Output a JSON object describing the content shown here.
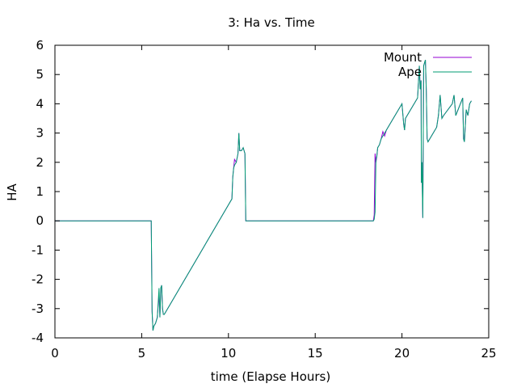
{
  "chart_data": {
    "type": "line",
    "title": "3: Ha vs. Time",
    "xlabel": "time (Elapse Hours)",
    "ylabel": "HA",
    "xlim": [
      0,
      25
    ],
    "ylim": [
      -4,
      6
    ],
    "xticks": [
      0,
      5,
      10,
      15,
      20,
      25
    ],
    "yticks": [
      -4,
      -3,
      -2,
      -1,
      0,
      1,
      2,
      3,
      4,
      5,
      6
    ],
    "grid": false,
    "legend_position": "top-right",
    "series": [
      {
        "name": "Mount",
        "color": "#9400d3",
        "x": [
          0,
          5.55,
          5.6,
          5.65,
          5.7,
          5.8,
          5.9,
          6.0,
          6.05,
          6.1,
          6.15,
          6.2,
          6.25,
          6.3,
          10.2,
          10.25,
          10.3,
          10.35,
          10.45,
          10.55,
          10.6,
          10.65,
          10.75,
          10.85,
          10.95,
          11.0,
          18.35,
          18.4,
          18.45,
          18.5,
          18.55,
          18.6,
          18.7,
          18.8,
          18.9,
          19.0,
          19.1,
          19.5,
          20.0,
          20.1,
          20.15,
          20.2,
          20.3,
          20.4,
          20.5,
          20.6,
          20.7,
          20.8,
          20.9,
          21.0,
          21.05,
          21.1,
          21.12,
          21.15,
          21.2,
          21.25,
          21.3,
          21.35,
          21.4,
          21.45,
          21.5,
          22.0,
          22.1,
          22.2,
          22.3,
          22.4,
          22.9,
          23.0,
          23.1,
          23.5,
          23.55,
          23.6,
          23.7,
          23.8,
          23.9,
          24.0
        ],
        "y": [
          0,
          0,
          -3.1,
          -3.75,
          -3.6,
          -3.5,
          -3.3,
          -2.5,
          -3.3,
          -2.3,
          -2.2,
          -3.0,
          -3.2,
          -3.2,
          0.75,
          1.5,
          1.8,
          2.1,
          2.0,
          2.3,
          3.0,
          2.4,
          2.4,
          2.5,
          2.3,
          0,
          0,
          0.2,
          2.3,
          2.0,
          2.2,
          2.5,
          2.6,
          2.8,
          3.05,
          2.9,
          3.1,
          3.5,
          4.0,
          3.3,
          3.1,
          3.5,
          3.6,
          3.7,
          3.8,
          3.9,
          4.0,
          4.1,
          4.2,
          5.3,
          4.5,
          4.8,
          1.3,
          2.0,
          0.1,
          5.3,
          5.4,
          5.5,
          4.5,
          2.8,
          2.7,
          3.2,
          3.6,
          4.3,
          3.5,
          3.6,
          4.0,
          4.3,
          3.6,
          4.2,
          2.8,
          2.7,
          3.8,
          3.6,
          4.0,
          4.1
        ]
      },
      {
        "name": "Ape",
        "color": "#009e73",
        "x": [
          0,
          5.55,
          5.6,
          5.65,
          5.7,
          5.8,
          5.9,
          6.0,
          6.05,
          6.1,
          6.15,
          6.2,
          6.25,
          6.3,
          10.2,
          10.25,
          10.3,
          10.35,
          10.45,
          10.55,
          10.6,
          10.65,
          10.75,
          10.85,
          10.95,
          11.0,
          18.35,
          18.4,
          18.45,
          18.5,
          18.55,
          18.6,
          18.7,
          18.8,
          18.9,
          19.0,
          19.1,
          19.5,
          20.0,
          20.1,
          20.15,
          20.2,
          20.3,
          20.4,
          20.5,
          20.6,
          20.7,
          20.8,
          20.9,
          21.0,
          21.05,
          21.1,
          21.12,
          21.15,
          21.2,
          21.25,
          21.3,
          21.35,
          21.4,
          21.45,
          21.5,
          22.0,
          22.1,
          22.2,
          22.3,
          22.4,
          22.9,
          23.0,
          23.1,
          23.5,
          23.55,
          23.6,
          23.7,
          23.8,
          23.9,
          24.0
        ],
        "y": [
          0,
          0,
          -3.1,
          -3.75,
          -3.6,
          -3.5,
          -3.3,
          -2.3,
          -3.3,
          -2.3,
          -2.2,
          -3.0,
          -3.2,
          -3.2,
          0.75,
          1.5,
          1.8,
          1.9,
          2.0,
          2.3,
          3.0,
          2.4,
          2.4,
          2.5,
          2.3,
          0,
          0,
          0.05,
          0.3,
          2.1,
          2.2,
          2.5,
          2.6,
          2.8,
          2.9,
          3.0,
          3.1,
          3.5,
          4.0,
          3.3,
          3.1,
          3.5,
          3.6,
          3.7,
          3.8,
          3.9,
          4.0,
          4.1,
          4.2,
          5.3,
          4.5,
          4.8,
          1.3,
          2.0,
          0.1,
          5.3,
          5.4,
          5.5,
          4.5,
          2.8,
          2.7,
          3.2,
          3.6,
          4.3,
          3.5,
          3.6,
          4.0,
          4.3,
          3.6,
          4.2,
          2.8,
          2.7,
          3.8,
          3.6,
          4.0,
          4.1
        ]
      }
    ]
  }
}
